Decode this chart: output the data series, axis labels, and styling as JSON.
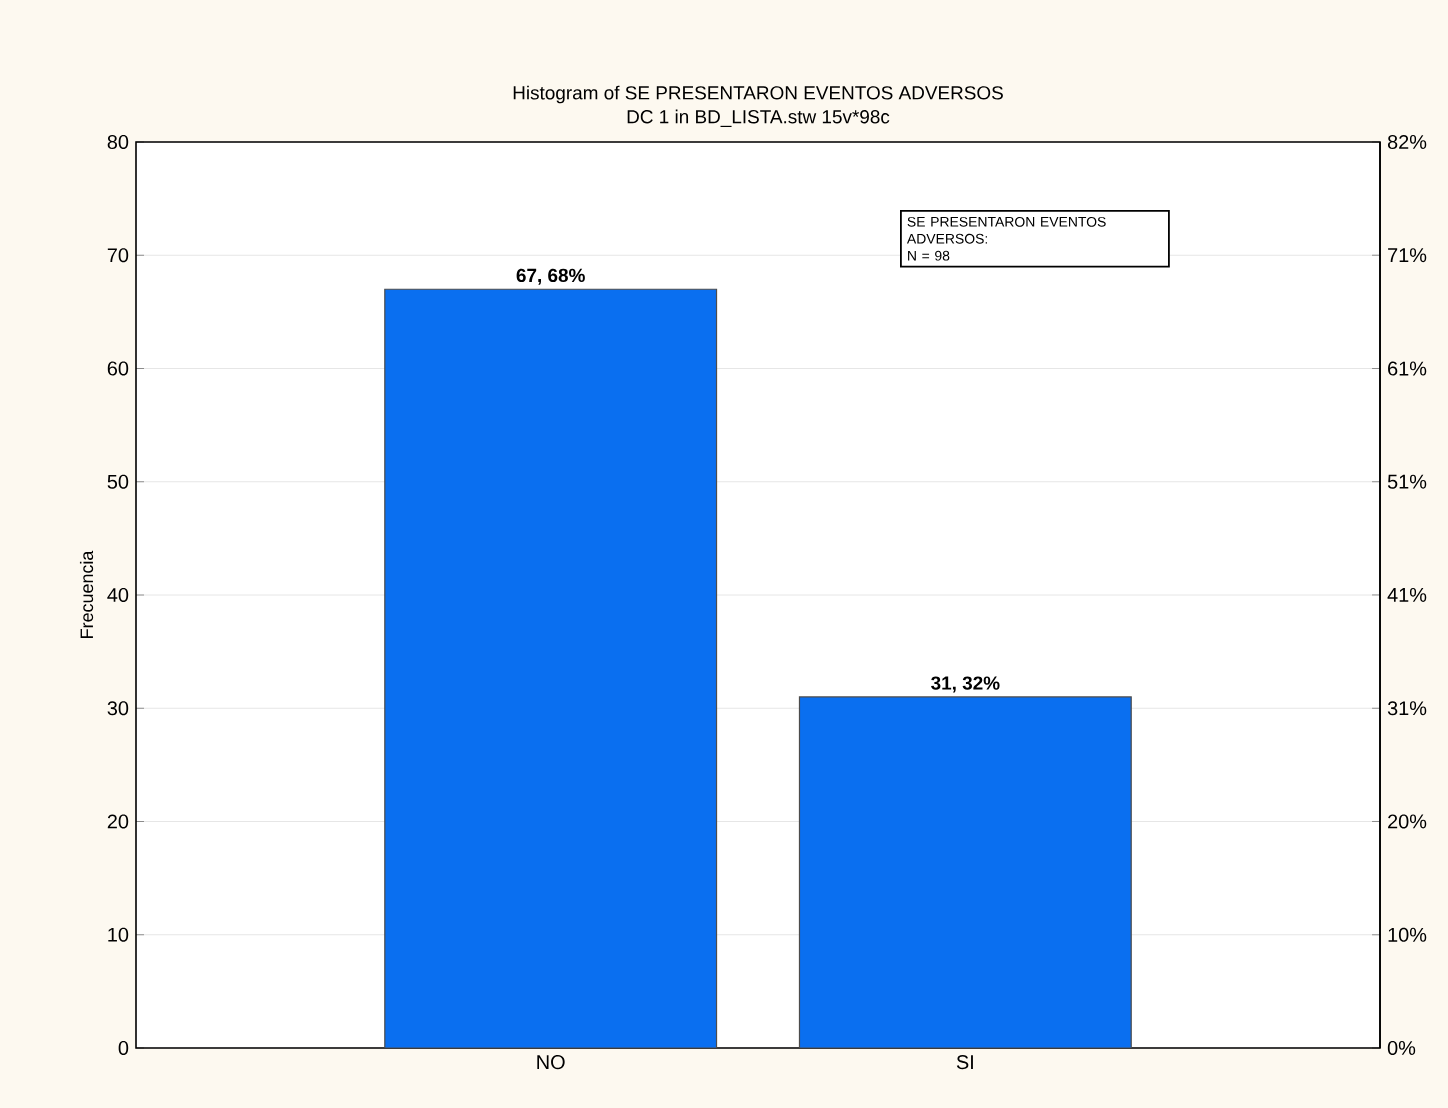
{
  "chart_data": {
    "type": "bar",
    "title": "Histogram of SE PRESENTARON EVENTOS ADVERSOS",
    "subtitle": "DC 1 in BD_LISTA.stw 15v*98c",
    "ylabel": "Frecuencia",
    "categories": [
      "NO",
      "SI"
    ],
    "values": [
      67,
      31
    ],
    "value_labels": [
      "67, 68%",
      "31, 32%"
    ],
    "color": "#0a6ff0",
    "ylim": [
      0,
      80
    ],
    "yticks": [
      0,
      10,
      20,
      30,
      40,
      50,
      60,
      70,
      80
    ],
    "y2lim": [
      0,
      81.63
    ],
    "y2ticks": [
      {
        "value": 0,
        "label": "0%"
      },
      {
        "value": 10.2,
        "label": "10%"
      },
      {
        "value": 20.41,
        "label": "20%"
      },
      {
        "value": 30.61,
        "label": "31%"
      },
      {
        "value": 40.82,
        "label": "41%"
      },
      {
        "value": 51.02,
        "label": "51%"
      },
      {
        "value": 61.22,
        "label": "61%"
      },
      {
        "value": 71.43,
        "label": "71%"
      },
      {
        "value": 81.63,
        "label": "82%"
      }
    ],
    "annotations": [
      "SE PRESENTARON EVENTOS ADVERSOS:",
      "N = 98"
    ],
    "grid": "y"
  }
}
